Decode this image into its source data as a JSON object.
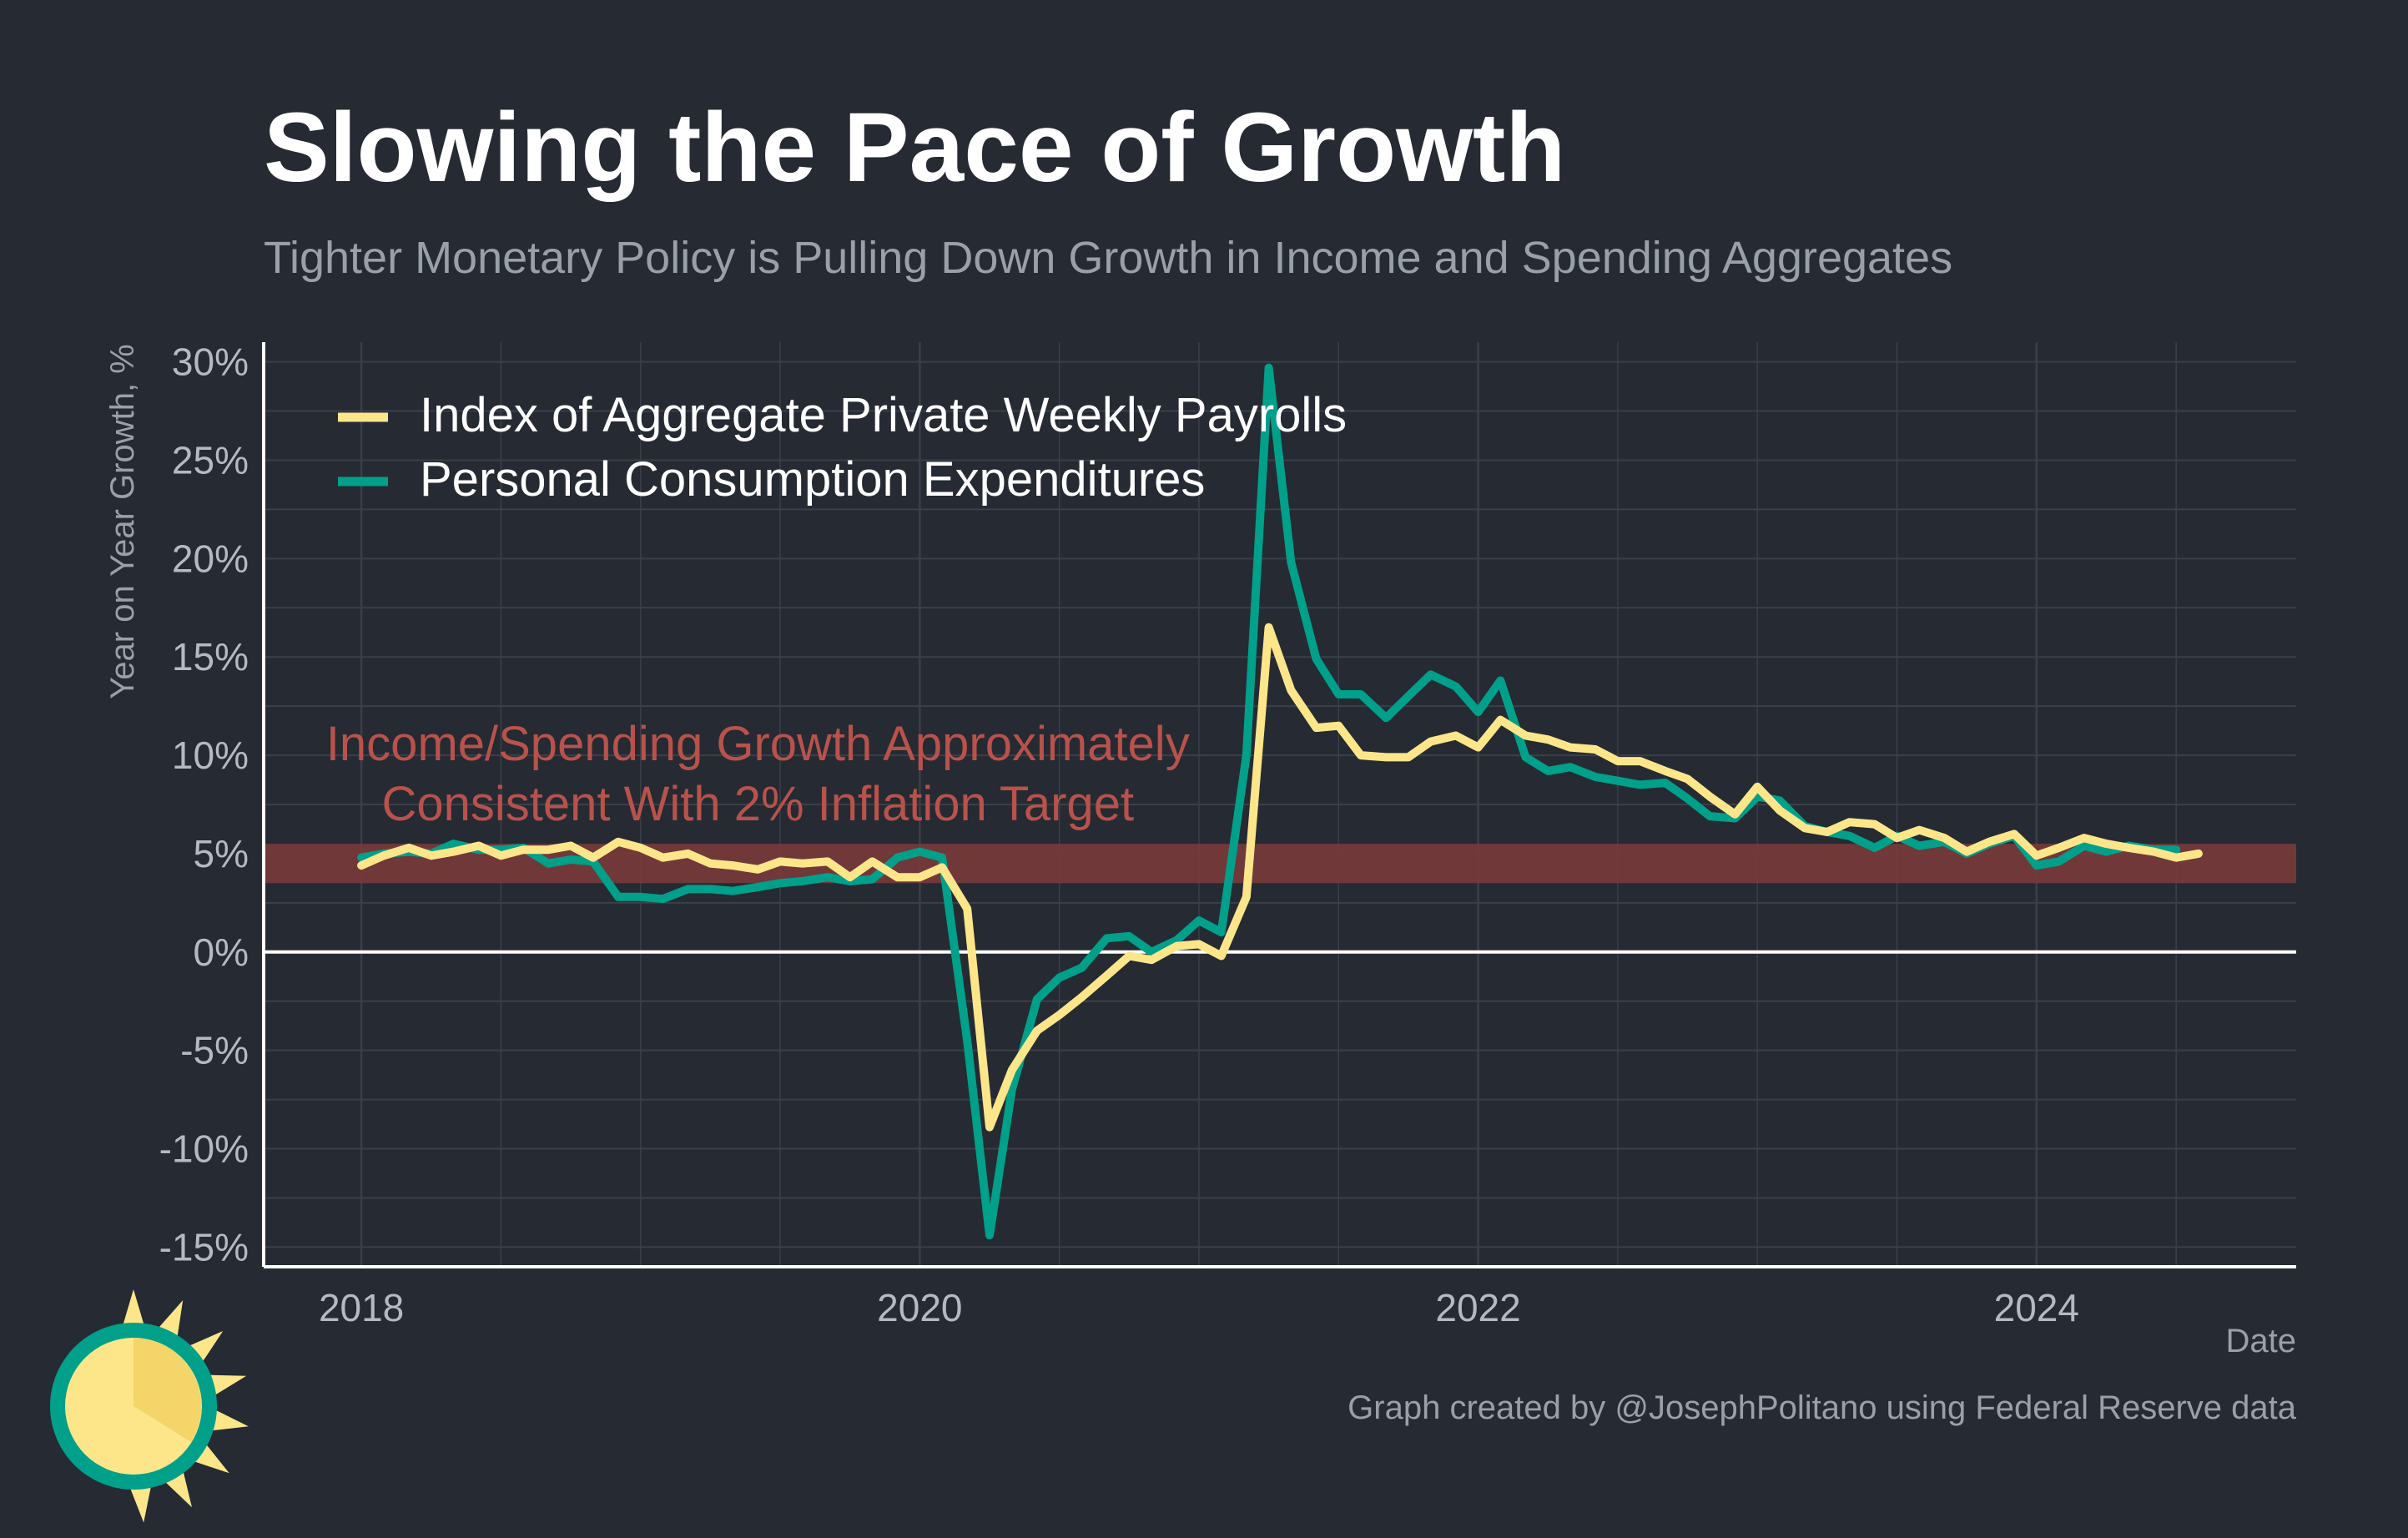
{
  "chart_data": {
    "type": "line",
    "title": "Slowing the Pace of Growth",
    "subtitle": "Tighter Monetary Policy is Pulling Down Growth in Income and Spending Aggregates",
    "xlabel": "Date",
    "ylabel": "Year on Year Growth, %",
    "xlim": [
      2017.65,
      2024.93
    ],
    "ylim": [
      -16,
      31
    ],
    "x_ticks": [
      2018,
      2020,
      2022,
      2024
    ],
    "x_tick_labels": [
      "2018",
      "2020",
      "2022",
      "2024"
    ],
    "y_ticks": [
      -15,
      -10,
      -5,
      0,
      5,
      10,
      15,
      20,
      25,
      30
    ],
    "y_tick_labels": [
      "-15%",
      "-10%",
      "-5%",
      "0%",
      "5%",
      "10%",
      "15%",
      "20%",
      "25%",
      "30%"
    ],
    "grid": true,
    "legend_position": "top-left",
    "target_band": [
      3.5,
      5.5
    ],
    "annotation": {
      "line1": "Income/Spending Growth Approximately",
      "line2": "Consistent With 2% Inflation Target",
      "x": 2019.42,
      "y": 10.6
    },
    "caption": "Graph created by @JosephPolitano using Federal Reserve data",
    "series": [
      {
        "name": "Personal Consumption Expenditures",
        "color": "#00a08a",
        "points": [
          [
            2018.0,
            4.8
          ],
          [
            2018.08,
            5.0
          ],
          [
            2018.17,
            5.1
          ],
          [
            2018.25,
            5.0
          ],
          [
            2018.33,
            5.5
          ],
          [
            2018.42,
            5.2
          ],
          [
            2018.5,
            5.2
          ],
          [
            2018.58,
            5.3
          ],
          [
            2018.67,
            4.5
          ],
          [
            2018.75,
            4.7
          ],
          [
            2018.83,
            4.6
          ],
          [
            2018.92,
            2.8
          ],
          [
            2019.0,
            2.8
          ],
          [
            2019.08,
            2.7
          ],
          [
            2019.17,
            3.2
          ],
          [
            2019.25,
            3.2
          ],
          [
            2019.33,
            3.1
          ],
          [
            2019.42,
            3.3
          ],
          [
            2019.5,
            3.5
          ],
          [
            2019.58,
            3.6
          ],
          [
            2019.67,
            3.8
          ],
          [
            2019.75,
            3.6
          ],
          [
            2019.83,
            3.7
          ],
          [
            2019.92,
            4.8
          ],
          [
            2020.0,
            5.1
          ],
          [
            2020.08,
            4.8
          ],
          [
            2020.17,
            -4.5
          ],
          [
            2020.25,
            -14.4
          ],
          [
            2020.33,
            -7.0
          ],
          [
            2020.42,
            -2.4
          ],
          [
            2020.5,
            -1.3
          ],
          [
            2020.58,
            -0.8
          ],
          [
            2020.67,
            0.7
          ],
          [
            2020.75,
            0.8
          ],
          [
            2020.83,
            0.0
          ],
          [
            2020.92,
            0.6
          ],
          [
            2021.0,
            1.6
          ],
          [
            2021.08,
            1.0
          ],
          [
            2021.17,
            10.0
          ],
          [
            2021.25,
            29.7
          ],
          [
            2021.33,
            19.8
          ],
          [
            2021.42,
            14.9
          ],
          [
            2021.5,
            13.1
          ],
          [
            2021.58,
            13.1
          ],
          [
            2021.67,
            11.9
          ],
          [
            2021.75,
            13.0
          ],
          [
            2021.83,
            14.1
          ],
          [
            2021.92,
            13.5
          ],
          [
            2022.0,
            12.2
          ],
          [
            2022.08,
            13.8
          ],
          [
            2022.17,
            9.9
          ],
          [
            2022.25,
            9.2
          ],
          [
            2022.33,
            9.4
          ],
          [
            2022.42,
            8.9
          ],
          [
            2022.5,
            8.7
          ],
          [
            2022.58,
            8.5
          ],
          [
            2022.67,
            8.6
          ],
          [
            2022.75,
            7.8
          ],
          [
            2022.83,
            6.9
          ],
          [
            2022.92,
            6.8
          ],
          [
            2023.0,
            7.9
          ],
          [
            2023.08,
            7.7
          ],
          [
            2023.17,
            6.4
          ],
          [
            2023.25,
            6.1
          ],
          [
            2023.33,
            5.9
          ],
          [
            2023.42,
            5.3
          ],
          [
            2023.5,
            5.9
          ],
          [
            2023.58,
            5.4
          ],
          [
            2023.67,
            5.6
          ],
          [
            2023.75,
            5.0
          ],
          [
            2023.83,
            5.5
          ],
          [
            2023.92,
            5.9
          ],
          [
            2024.0,
            4.4
          ],
          [
            2024.08,
            4.6
          ],
          [
            2024.17,
            5.4
          ],
          [
            2024.25,
            5.1
          ],
          [
            2024.33,
            5.4
          ],
          [
            2024.42,
            5.2
          ],
          [
            2024.5,
            5.2
          ]
        ]
      },
      {
        "name": "Index of Aggregate Private Weekly Payrolls",
        "color": "#fde68a",
        "points": [
          [
            2018.0,
            4.4
          ],
          [
            2018.08,
            4.9
          ],
          [
            2018.17,
            5.3
          ],
          [
            2018.25,
            4.9
          ],
          [
            2018.33,
            5.1
          ],
          [
            2018.42,
            5.4
          ],
          [
            2018.5,
            4.9
          ],
          [
            2018.58,
            5.2
          ],
          [
            2018.67,
            5.2
          ],
          [
            2018.75,
            5.4
          ],
          [
            2018.83,
            4.8
          ],
          [
            2018.92,
            5.6
          ],
          [
            2019.0,
            5.3
          ],
          [
            2019.08,
            4.8
          ],
          [
            2019.17,
            5.0
          ],
          [
            2019.25,
            4.5
          ],
          [
            2019.33,
            4.4
          ],
          [
            2019.42,
            4.2
          ],
          [
            2019.5,
            4.6
          ],
          [
            2019.58,
            4.5
          ],
          [
            2019.67,
            4.6
          ],
          [
            2019.75,
            3.8
          ],
          [
            2019.83,
            4.6
          ],
          [
            2019.92,
            3.8
          ],
          [
            2020.0,
            3.8
          ],
          [
            2020.08,
            4.3
          ],
          [
            2020.17,
            2.2
          ],
          [
            2020.25,
            -8.9
          ],
          [
            2020.33,
            -6.0
          ],
          [
            2020.42,
            -4.0
          ],
          [
            2020.5,
            -3.2
          ],
          [
            2020.58,
            -2.3
          ],
          [
            2020.67,
            -1.2
          ],
          [
            2020.75,
            -0.2
          ],
          [
            2020.83,
            -0.4
          ],
          [
            2020.92,
            0.3
          ],
          [
            2021.0,
            0.4
          ],
          [
            2021.08,
            -0.2
          ],
          [
            2021.17,
            2.8
          ],
          [
            2021.25,
            16.5
          ],
          [
            2021.33,
            13.3
          ],
          [
            2021.42,
            11.4
          ],
          [
            2021.5,
            11.5
          ],
          [
            2021.58,
            10.0
          ],
          [
            2021.67,
            9.9
          ],
          [
            2021.75,
            9.9
          ],
          [
            2021.83,
            10.7
          ],
          [
            2021.92,
            11.0
          ],
          [
            2022.0,
            10.4
          ],
          [
            2022.08,
            11.8
          ],
          [
            2022.17,
            11.0
          ],
          [
            2022.25,
            10.8
          ],
          [
            2022.33,
            10.4
          ],
          [
            2022.42,
            10.3
          ],
          [
            2022.5,
            9.7
          ],
          [
            2022.58,
            9.7
          ],
          [
            2022.67,
            9.2
          ],
          [
            2022.75,
            8.8
          ],
          [
            2022.83,
            7.9
          ],
          [
            2022.92,
            7.0
          ],
          [
            2023.0,
            8.4
          ],
          [
            2023.08,
            7.2
          ],
          [
            2023.17,
            6.3
          ],
          [
            2023.25,
            6.1
          ],
          [
            2023.33,
            6.6
          ],
          [
            2023.42,
            6.5
          ],
          [
            2023.5,
            5.8
          ],
          [
            2023.58,
            6.2
          ],
          [
            2023.67,
            5.8
          ],
          [
            2023.75,
            5.1
          ],
          [
            2023.83,
            5.6
          ],
          [
            2023.92,
            6.0
          ],
          [
            2024.0,
            4.9
          ],
          [
            2024.08,
            5.3
          ],
          [
            2024.17,
            5.8
          ],
          [
            2024.25,
            5.5
          ],
          [
            2024.33,
            5.3
          ],
          [
            2024.42,
            5.1
          ],
          [
            2024.5,
            4.8
          ],
          [
            2024.58,
            5.0
          ]
        ]
      }
    ]
  },
  "colors": {
    "background": "#252a33",
    "grid": "#3a3f49",
    "band": "#7a3a3a",
    "axis": "#ffffff",
    "zero_line": "#ffffff"
  },
  "logo": {
    "icon": "sun-icon"
  }
}
